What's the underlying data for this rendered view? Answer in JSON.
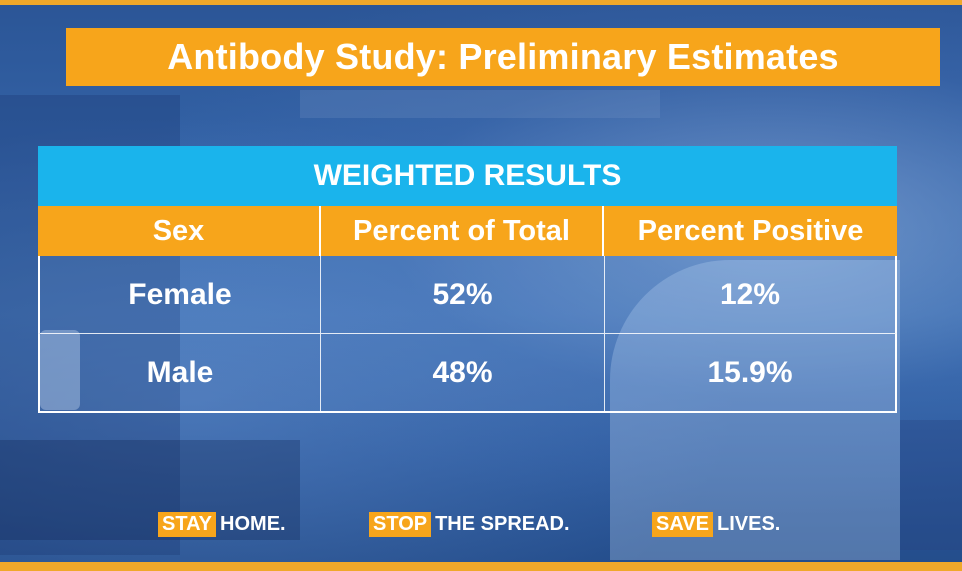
{
  "title": "Antibody Study: Preliminary Estimates",
  "table": {
    "header": "WEIGHTED RESULTS",
    "columns": [
      "Sex",
      "Percent of Total",
      "Percent Positive"
    ],
    "rows": [
      [
        "Female",
        "52%",
        "12%"
      ],
      [
        "Male",
        "48%",
        "15.9%"
      ]
    ]
  },
  "slogans": [
    {
      "highlight": "STAY",
      "rest": "HOME."
    },
    {
      "highlight": "STOP",
      "rest": "THE SPREAD."
    },
    {
      "highlight": "SAVE",
      "rest": "LIVES."
    }
  ],
  "colors": {
    "accent_orange": "#f7a51b",
    "header_blue": "#1ab4ec",
    "background_blue": "#2f5fa3",
    "text": "#ffffff"
  }
}
